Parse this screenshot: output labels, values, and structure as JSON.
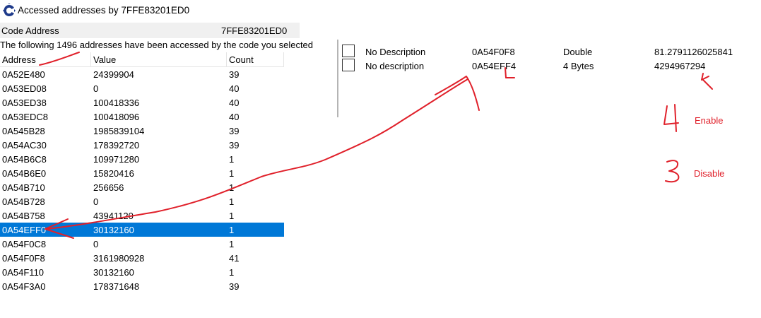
{
  "window": {
    "title": "Accessed addresses by 7FFE83201ED0",
    "code_address_label": "Code Address",
    "code_address_value": "7FFE83201ED0",
    "info_text": "The following 1496 addresses have been accessed by the code you selected"
  },
  "list": {
    "columns": [
      "Address",
      "Value",
      "Count"
    ],
    "rows": [
      {
        "address": "0A52E480",
        "value": "24399904",
        "count": "39"
      },
      {
        "address": "0A53ED08",
        "value": "0",
        "count": "40"
      },
      {
        "address": "0A53ED38",
        "value": "100418336",
        "count": "40"
      },
      {
        "address": "0A53EDC8",
        "value": "100418096",
        "count": "40"
      },
      {
        "address": "0A545B28",
        "value": "1985839104",
        "count": "39"
      },
      {
        "address": "0A54AC30",
        "value": "178392720",
        "count": "39"
      },
      {
        "address": "0A54B6C8",
        "value": "109971280",
        "count": "1"
      },
      {
        "address": "0A54B6E0",
        "value": "15820416",
        "count": "1"
      },
      {
        "address": "0A54B710",
        "value": "256656",
        "count": "1"
      },
      {
        "address": "0A54B728",
        "value": "0",
        "count": "1"
      },
      {
        "address": "0A54B758",
        "value": "43941120",
        "count": "1"
      },
      {
        "address": "0A54EFF0",
        "value": "30132160",
        "count": "1"
      },
      {
        "address": "0A54F0C8",
        "value": "0",
        "count": "1"
      },
      {
        "address": "0A54F0F8",
        "value": "3161980928",
        "count": "41"
      },
      {
        "address": "0A54F110",
        "value": "30132160",
        "count": "1"
      },
      {
        "address": "0A54F3A0",
        "value": "178371648",
        "count": "39"
      }
    ],
    "selected_index": 11
  },
  "cheat_table": [
    {
      "description": "No Description",
      "address": "0A54F0F8",
      "type": "Double",
      "value": "81.2791126025841"
    },
    {
      "description": "No description",
      "address": "0A54EFF4",
      "type": "4 Bytes",
      "value": "4294967294"
    }
  ],
  "annotations": {
    "enable_number": "4",
    "enable_label": "Enable",
    "disable_number": "3",
    "disable_label": "Disable",
    "color": "#e0202a"
  },
  "colors": {
    "selection": "#0078d7",
    "app_icon": "#1e3a8a"
  }
}
